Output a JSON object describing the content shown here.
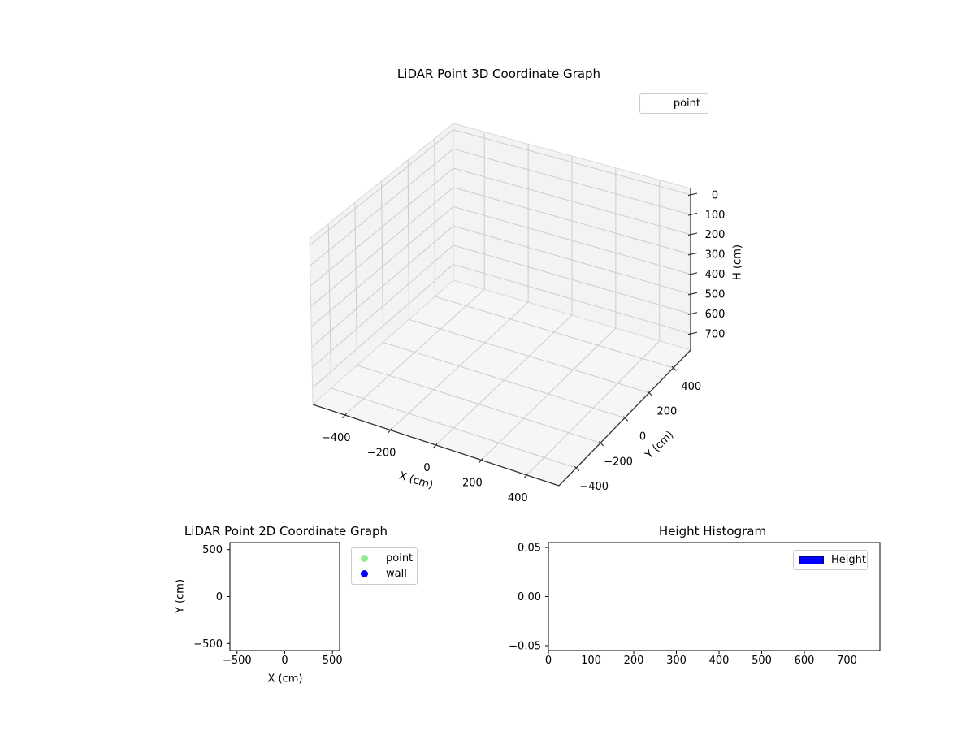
{
  "figure": {
    "background": "#ffffff"
  },
  "colors": {
    "pane_wall": "#f3f3f3",
    "pane_floor": "#f6f6f6",
    "grid3d": "#cccccc",
    "pane_edge": "#d9d9d9",
    "axis_line_3d": "#333333",
    "axes_border": "#000000",
    "text": "#000000",
    "legend_border": "#cccccc",
    "point_marker": "#90ee90",
    "wall_marker": "#0000ff",
    "height_swatch": "#0000ff"
  },
  "chart_data": [
    {
      "id": "plot3d",
      "type": "scatter3d",
      "title": "LiDAR Point 3D Coordinate Graph",
      "xlabel": "X (cm)",
      "ylabel": "Y (cm)",
      "zlabel": "H (cm)",
      "xticks": [
        -400,
        -200,
        0,
        200,
        400
      ],
      "yticks": [
        -400,
        -200,
        0,
        200,
        400
      ],
      "zticks": [
        0,
        100,
        200,
        300,
        400,
        500,
        600,
        700
      ],
      "xlim": [
        -542,
        542
      ],
      "ylim": [
        -542,
        542
      ],
      "zlim": [
        -32,
        782
      ],
      "zaxis_inverted": true,
      "grid": true,
      "legend": {
        "position": "upper right",
        "entries": [
          {
            "label": "point",
            "marker": "none"
          }
        ]
      },
      "series": [
        {
          "name": "point",
          "points": []
        }
      ]
    },
    {
      "id": "plot2d",
      "type": "scatter",
      "title": "LiDAR Point 2D Coordinate Graph",
      "xlabel": "X (cm)",
      "ylabel": "Y (cm)",
      "xticks": [
        -500,
        0,
        500
      ],
      "yticks": [
        500,
        0,
        -500
      ],
      "xlim": [
        -575,
        575
      ],
      "ylim": [
        -575,
        575
      ],
      "grid": false,
      "legend": {
        "position": "outside right",
        "entries": [
          {
            "label": "point",
            "marker": "circle",
            "color": "#90ee90"
          },
          {
            "label": "wall",
            "marker": "circle",
            "color": "#0000ff"
          }
        ]
      },
      "series": [
        {
          "name": "point",
          "points": []
        },
        {
          "name": "wall",
          "points": []
        }
      ]
    },
    {
      "id": "histogram",
      "type": "bar",
      "title": "Height Histogram",
      "xlabel": "",
      "ylabel": "",
      "xticks": [
        0,
        100,
        200,
        300,
        400,
        500,
        600,
        700
      ],
      "yticks": [
        0.05,
        0.0,
        -0.05
      ],
      "ytick_labels": [
        "0.05",
        "0.00",
        "−0.05"
      ],
      "xlim": [
        0,
        777
      ],
      "ylim": [
        -0.055,
        0.055
      ],
      "grid": false,
      "legend": {
        "position": "upper right",
        "entries": [
          {
            "label": "Height",
            "marker": "rect",
            "color": "#0000ff"
          }
        ]
      },
      "values": []
    }
  ]
}
